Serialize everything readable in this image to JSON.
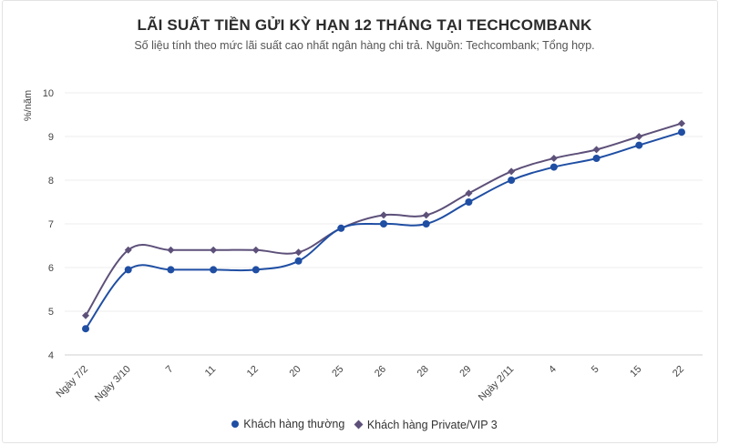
{
  "chart_data": {
    "type": "line",
    "title": "LÃI SUẤT TIỀN GỬI KỲ HẠN 12 THÁNG TẠI TECHCOMBANK",
    "subtitle": "Số liệu tính theo mức lãi suất cao nhất ngân hàng chi trả. Nguồn: Techcombank; Tổng hợp.",
    "ylabel": "%/năm",
    "xlabel": "",
    "ylim": [
      4,
      10
    ],
    "yticks": [
      4,
      5,
      6,
      7,
      8,
      9,
      10
    ],
    "grid": true,
    "legend_position": "bottom",
    "categories": [
      "Ngày 7/2",
      "Ngày 3/10",
      "7",
      "11",
      "12",
      "20",
      "25",
      "26",
      "28",
      "29",
      "Ngày 2/11",
      "4",
      "5",
      "15",
      "22"
    ],
    "series": [
      {
        "name": "Khách hàng thường",
        "color": "#1f4ea3",
        "marker": "circle",
        "values": [
          4.6,
          5.95,
          5.95,
          5.95,
          5.95,
          6.15,
          6.9,
          7.0,
          7.0,
          7.5,
          8.0,
          8.3,
          8.5,
          8.8,
          9.1
        ]
      },
      {
        "name": "Khách hàng Private/VIP 3",
        "color": "#5d5079",
        "marker": "diamond",
        "values": [
          4.9,
          6.4,
          6.4,
          6.4,
          6.4,
          6.35,
          6.9,
          7.2,
          7.2,
          7.7,
          8.2,
          8.5,
          8.7,
          9.0,
          9.3
        ]
      }
    ]
  }
}
